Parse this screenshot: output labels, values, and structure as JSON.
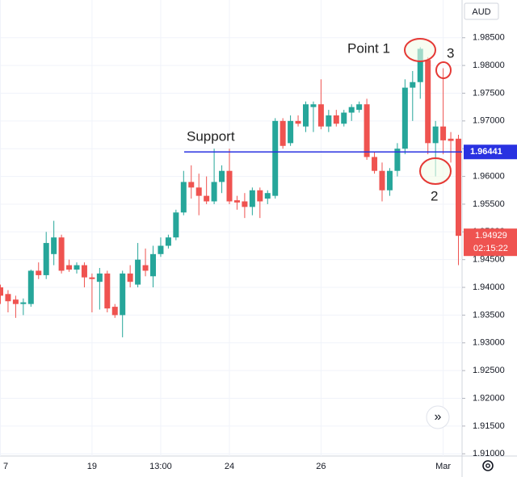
{
  "chart_data": {
    "type": "candlestick",
    "currency": "AUD",
    "categories": [
      "7",
      null,
      null,
      null,
      null,
      null,
      null,
      null,
      null,
      null,
      null,
      null,
      "19",
      null,
      null,
      null,
      null,
      null,
      null,
      null,
      null,
      "13:00",
      null,
      null,
      null,
      null,
      null,
      null,
      null,
      null,
      "24",
      null,
      null,
      null,
      null,
      null,
      null,
      null,
      null,
      null,
      null,
      null,
      "26",
      null,
      null,
      null,
      null,
      null,
      null,
      null,
      null,
      null,
      null,
      null,
      null,
      null,
      null,
      null,
      "Mar",
      null,
      null
    ],
    "open": [
      1.94,
      1.9388,
      1.9378,
      1.937,
      1.937,
      1.943,
      1.9422,
      1.946,
      1.949,
      1.944,
      1.9432,
      1.944,
      1.9418,
      1.941,
      1.9425,
      1.9365,
      1.935,
      1.9425,
      1.9405,
      1.944,
      1.942,
      1.946,
      1.9475,
      1.949,
      1.9535,
      1.959,
      1.958,
      1.9565,
      1.9555,
      1.959,
      1.961,
      1.9557,
      1.9555,
      1.9545,
      1.9575,
      1.956,
      1.9565,
      1.97,
      1.966,
      1.97,
      1.969,
      1.9725,
      1.973,
      1.969,
      1.971,
      1.9695,
      1.9715,
      1.972,
      1.973,
      1.9635,
      1.961,
      1.9575,
      1.961,
      1.965,
      1.976,
      1.977,
      1.981,
      1.966,
      1.969,
      1.9668,
      1.9668
    ],
    "high": [
      1.9405,
      1.9395,
      1.9385,
      1.938,
      1.9432,
      1.9445,
      1.95,
      1.952,
      1.9495,
      1.945,
      1.9445,
      1.9445,
      1.9425,
      1.9435,
      1.943,
      1.937,
      1.943,
      1.944,
      1.948,
      1.947,
      1.9475,
      1.949,
      1.9495,
      1.954,
      1.961,
      1.962,
      1.9605,
      1.96,
      1.965,
      1.962,
      1.965,
      1.9565,
      1.957,
      1.958,
      1.958,
      1.9575,
      1.9705,
      1.9705,
      1.971,
      1.971,
      1.9735,
      1.9735,
      1.9775,
      1.972,
      1.972,
      1.972,
      1.973,
      1.9735,
      1.974,
      1.9645,
      1.9625,
      1.9615,
      1.966,
      1.9775,
      1.979,
      1.9833,
      1.9815,
      1.97,
      1.9795,
      1.968,
      1.9675
    ],
    "low": [
      1.937,
      1.9355,
      1.9345,
      1.935,
      1.9365,
      1.9415,
      1.9415,
      1.944,
      1.9425,
      1.9428,
      1.9425,
      1.94,
      1.9355,
      1.936,
      1.9355,
      1.9345,
      1.931,
      1.94,
      1.94,
      1.942,
      1.94,
      1.9455,
      1.947,
      1.9485,
      1.953,
      1.956,
      1.953,
      1.955,
      1.955,
      1.957,
      1.955,
      1.954,
      1.9525,
      1.953,
      1.9525,
      1.955,
      1.956,
      1.965,
      1.9655,
      1.969,
      1.968,
      1.968,
      1.9685,
      1.968,
      1.969,
      1.969,
      1.97,
      1.9715,
      1.963,
      1.9605,
      1.9555,
      1.9565,
      1.96,
      1.964,
      1.97,
      1.974,
      1.964,
      1.96,
      1.964,
      1.9625,
      1.944
    ],
    "close": [
      1.9385,
      1.9375,
      1.937,
      1.9373,
      1.943,
      1.9422,
      1.948,
      1.949,
      1.943,
      1.9432,
      1.944,
      1.9418,
      1.9415,
      1.9425,
      1.9362,
      1.935,
      1.9425,
      1.941,
      1.945,
      1.943,
      1.946,
      1.9475,
      1.949,
      1.9535,
      1.959,
      1.958,
      1.9565,
      1.9555,
      1.959,
      1.961,
      1.9555,
      1.9553,
      1.9545,
      1.9575,
      1.9555,
      1.957,
      1.97,
      1.9655,
      1.97,
      1.9695,
      1.973,
      1.973,
      1.969,
      1.971,
      1.9695,
      1.9715,
      1.9725,
      1.973,
      1.9635,
      1.961,
      1.9575,
      1.961,
      1.965,
      1.976,
      1.977,
      1.983,
      1.966,
      1.969,
      1.9665,
      1.9664,
      1.94929
    ],
    "up_color": "#26a69a",
    "down_color": "#ef5350",
    "ylim": [
      1.9096,
      1.9918
    ],
    "yticks": [
      {
        "value": 1.91,
        "label": "1.91000"
      },
      {
        "value": 1.915,
        "label": "1.91500"
      },
      {
        "value": 1.92,
        "label": "1.92000"
      },
      {
        "value": 1.925,
        "label": "1.92500"
      },
      {
        "value": 1.93,
        "label": "1.93000"
      },
      {
        "value": 1.935,
        "label": "1.93500"
      },
      {
        "value": 1.94,
        "label": "1.94000"
      },
      {
        "value": 1.945,
        "label": "1.94500"
      },
      {
        "value": 1.95,
        "label": "1.95000"
      },
      {
        "value": 1.955,
        "label": "1.95500"
      },
      {
        "value": 1.96,
        "label": "1.96000"
      },
      {
        "value": 1.965,
        "label": "1.96500"
      },
      {
        "value": 1.97,
        "label": "1.97000"
      },
      {
        "value": 1.975,
        "label": "1.97500"
      },
      {
        "value": 1.98,
        "label": "1.98000"
      },
      {
        "value": 1.985,
        "label": "1.98500"
      }
    ],
    "grid": true,
    "support": {
      "label": "Support",
      "value": 1.96441,
      "color": "#2932e1"
    },
    "last_price": 1.94929,
    "countdown": "02:15:22",
    "annotations": [
      "Point 1",
      "3",
      "2"
    ]
  }
}
